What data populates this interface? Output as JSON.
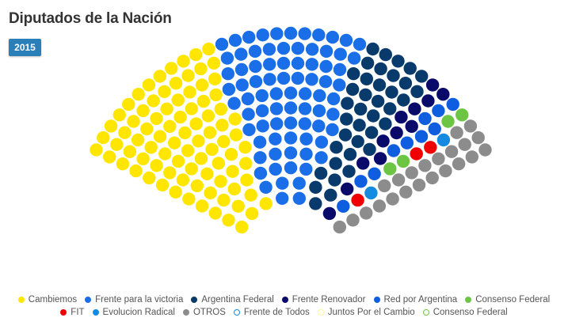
{
  "title": "Diputados de la Nación",
  "year_tab": "2015",
  "chart_data": {
    "type": "parliament",
    "total_seats": 257,
    "rows": 12,
    "series": [
      {
        "name": "Cambiemos",
        "seats": 86,
        "color": "#ffe600"
      },
      {
        "name": "Frente para la victoria",
        "seats": 80,
        "color": "#1a6fe8"
      },
      {
        "name": "Argentina Federal",
        "seats": 38,
        "color": "#083a6b"
      },
      {
        "name": "Frente Renovador",
        "seats": 12,
        "color": "#0a0a6b"
      },
      {
        "name": "Red por Argentina",
        "seats": 10,
        "color": "#0f5ee0"
      },
      {
        "name": "Consenso Federal",
        "seats": 4,
        "color": "#6cc644"
      },
      {
        "name": "FIT",
        "seats": 3,
        "color": "#f00000"
      },
      {
        "name": "Evolucion Radical",
        "seats": 2,
        "color": "#148be0"
      },
      {
        "name": "OTROS",
        "seats": 22,
        "color": "#8c8c8c"
      },
      {
        "name": "Frente de Todos",
        "seats": 0,
        "color": "#148be0"
      },
      {
        "name": "Juntos Por el Cambio",
        "seats": 0,
        "color": "#fff59a"
      },
      {
        "name": "Consenso Federal",
        "seats": 0,
        "color": "#6cc644"
      }
    ]
  }
}
